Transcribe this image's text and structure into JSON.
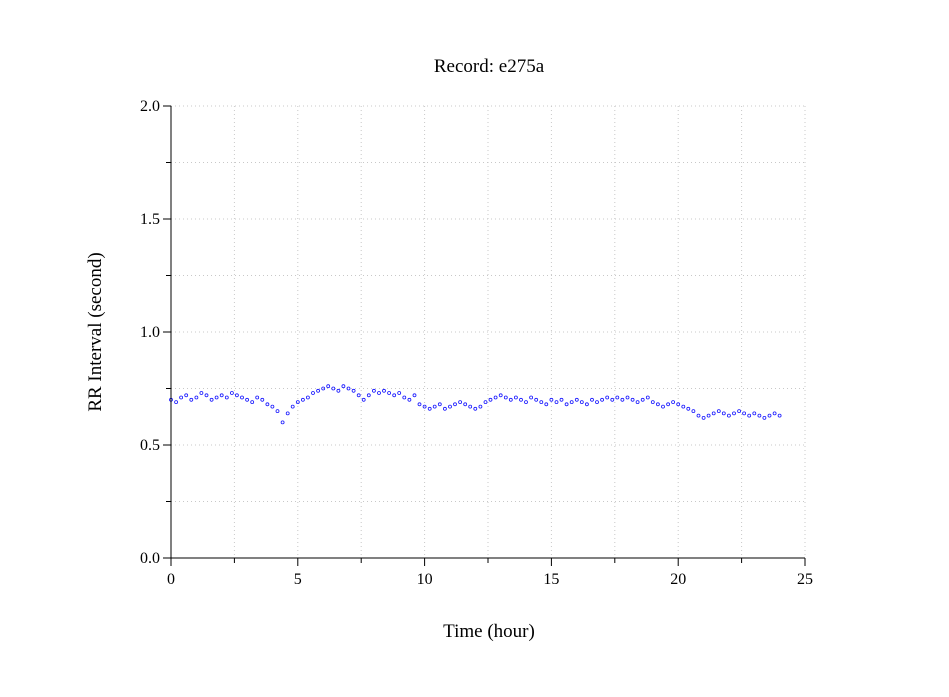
{
  "chart_data": {
    "type": "scatter",
    "title": "Record:  e275a",
    "xlabel": "Time (hour)",
    "ylabel": "RR Interval (second)",
    "xlim": [
      0,
      25
    ],
    "ylim": [
      0,
      2.0
    ],
    "x_ticks": [
      0,
      5,
      10,
      15,
      20,
      25
    ],
    "x_tick_labels": [
      "0",
      "5",
      "10",
      "15",
      "20",
      "25"
    ],
    "x_minor_step": 2.5,
    "y_ticks": [
      0,
      0.5,
      1.0,
      1.5,
      2.0
    ],
    "y_tick_labels": [
      "0.0",
      "0.5",
      "1.0",
      "1.5",
      "2.0"
    ],
    "y_minor_step": 0.25,
    "grid": true,
    "marker": "open-circle",
    "color": "#1414ff",
    "series": [
      {
        "x": [
          0.0,
          0.2,
          0.4,
          0.6,
          0.8,
          1.0,
          1.2,
          1.4,
          1.6,
          1.8,
          2.0,
          2.2,
          2.4,
          2.6,
          2.8,
          3.0,
          3.2,
          3.4,
          3.6,
          3.8,
          4.0,
          4.2,
          4.4,
          4.6,
          4.8,
          5.0,
          5.2,
          5.4,
          5.6,
          5.8,
          6.0,
          6.2,
          6.4,
          6.6,
          6.8,
          7.0,
          7.2,
          7.4,
          7.6,
          7.8,
          8.0,
          8.2,
          8.4,
          8.6,
          8.8,
          9.0,
          9.2,
          9.4,
          9.6,
          9.8,
          10.0,
          10.2,
          10.4,
          10.6,
          10.8,
          11.0,
          11.2,
          11.4,
          11.6,
          11.8,
          12.0,
          12.2,
          12.4,
          12.6,
          12.8,
          13.0,
          13.2,
          13.4,
          13.6,
          13.8,
          14.0,
          14.2,
          14.4,
          14.6,
          14.8,
          15.0,
          15.2,
          15.4,
          15.6,
          15.8,
          16.0,
          16.2,
          16.4,
          16.6,
          16.8,
          17.0,
          17.2,
          17.4,
          17.6,
          17.8,
          18.0,
          18.2,
          18.4,
          18.6,
          18.8,
          19.0,
          19.2,
          19.4,
          19.6,
          19.8,
          20.0,
          20.2,
          20.4,
          20.6,
          20.8,
          21.0,
          21.2,
          21.4,
          21.6,
          21.8,
          22.0,
          22.2,
          22.4,
          22.6,
          22.8,
          23.0,
          23.2,
          23.4,
          23.6,
          23.8,
          24.0
        ],
        "y": [
          0.7,
          0.69,
          0.71,
          0.72,
          0.7,
          0.71,
          0.73,
          0.72,
          0.7,
          0.71,
          0.72,
          0.71,
          0.73,
          0.72,
          0.71,
          0.7,
          0.69,
          0.71,
          0.7,
          0.68,
          0.67,
          0.65,
          0.6,
          0.64,
          0.67,
          0.69,
          0.7,
          0.71,
          0.73,
          0.74,
          0.75,
          0.76,
          0.75,
          0.74,
          0.76,
          0.75,
          0.74,
          0.72,
          0.7,
          0.72,
          0.74,
          0.73,
          0.74,
          0.73,
          0.72,
          0.73,
          0.71,
          0.7,
          0.72,
          0.68,
          0.67,
          0.66,
          0.67,
          0.68,
          0.66,
          0.67,
          0.68,
          0.69,
          0.68,
          0.67,
          0.66,
          0.67,
          0.69,
          0.7,
          0.71,
          0.72,
          0.71,
          0.7,
          0.71,
          0.7,
          0.69,
          0.71,
          0.7,
          0.69,
          0.68,
          0.7,
          0.69,
          0.7,
          0.68,
          0.69,
          0.7,
          0.69,
          0.68,
          0.7,
          0.69,
          0.7,
          0.71,
          0.7,
          0.71,
          0.7,
          0.71,
          0.7,
          0.69,
          0.7,
          0.71,
          0.69,
          0.68,
          0.67,
          0.68,
          0.69,
          0.68,
          0.67,
          0.66,
          0.65,
          0.63,
          0.62,
          0.63,
          0.64,
          0.65,
          0.64,
          0.63,
          0.64,
          0.65,
          0.64,
          0.63,
          0.64,
          0.63,
          0.62,
          0.63,
          0.64,
          0.63
        ]
      }
    ]
  }
}
